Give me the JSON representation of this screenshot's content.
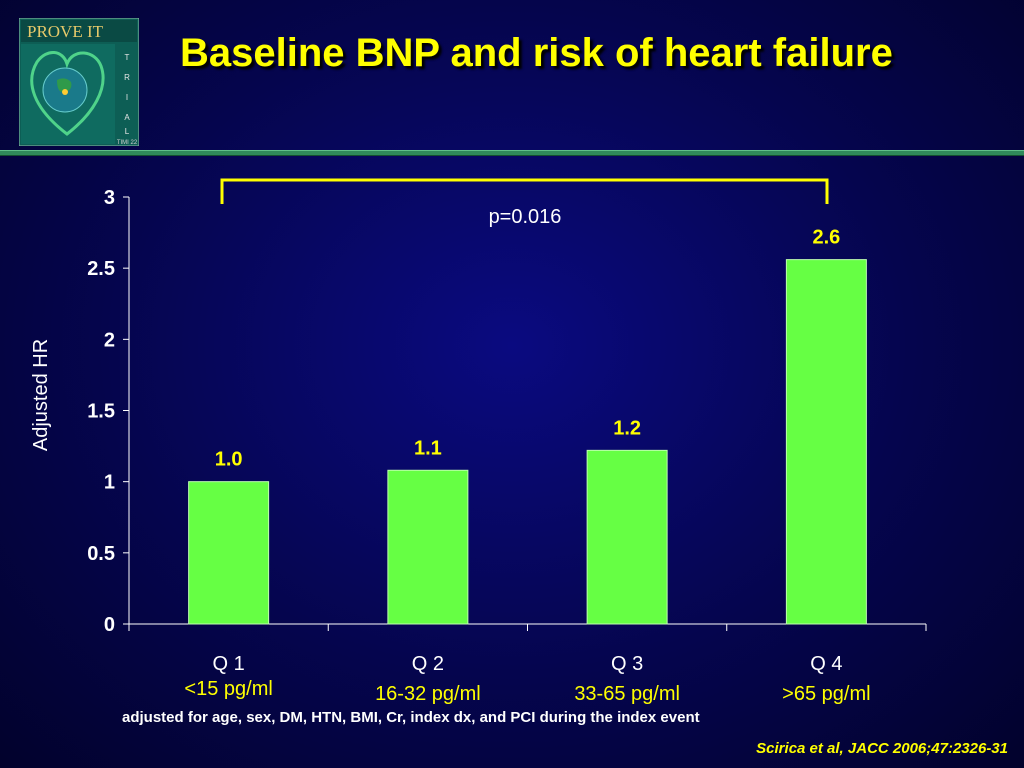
{
  "logo": {
    "text_top": "PROVE IT",
    "text_side": [
      "T",
      "R",
      "I",
      "A",
      "L"
    ],
    "text_bottom": "TIMI 22",
    "icon": "heart-globe-icon"
  },
  "title": "Baseline BNP and risk of heart failure",
  "annotation": "p=0.016",
  "footnote": "adjusted for age, sex, DM, HTN, BMI, Cr, index dx, and PCI during the index event",
  "citation": "Scirica et al, JACC 2006;47:2326-31",
  "colors": {
    "bar": "#66ff44",
    "accent": "#ffff00",
    "background": "#05054e",
    "rule": "#2f8a5a"
  },
  "chart_data": {
    "type": "bar",
    "categories": [
      "Q 1",
      "Q 2",
      "Q 3",
      "Q 4"
    ],
    "category_sublabels": [
      "<15 pg/ml",
      "16-32 pg/ml",
      "33-65 pg/ml",
      ">65 pg/ml"
    ],
    "values": [
      1.0,
      1.08,
      1.22,
      2.56
    ],
    "data_labels": [
      "1.0",
      "1.1",
      "1.2",
      "2.6"
    ],
    "ylabel": "Adjusted HR",
    "xlabel": "",
    "ylim": [
      0,
      3
    ],
    "yticks": [
      "0",
      "0.5",
      "1",
      "1.5",
      "2",
      "2.5",
      "3"
    ],
    "grid": false,
    "legend": "none",
    "annotation": "p=0.016"
  }
}
